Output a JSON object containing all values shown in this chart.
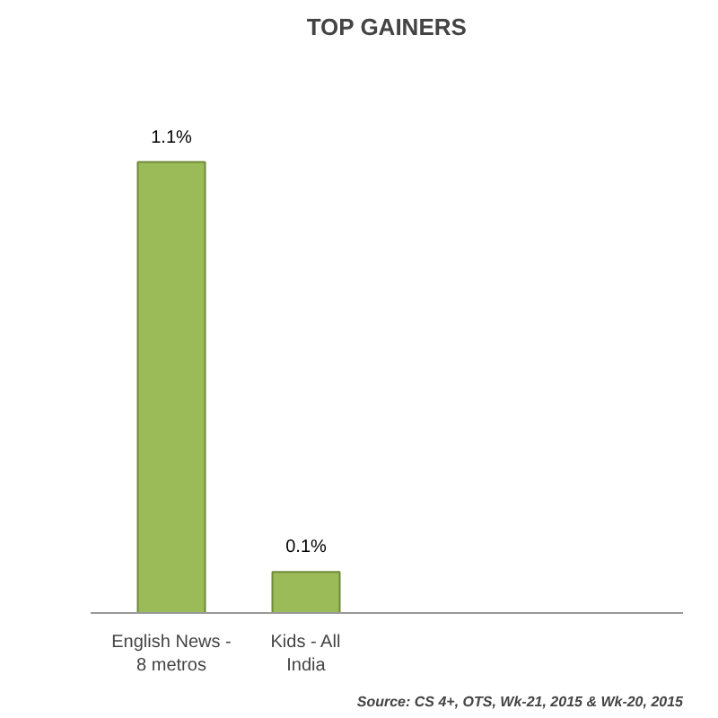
{
  "chart_data": {
    "type": "bar",
    "title": "TOP GAINERS",
    "categories": [
      "English News - 8 metros",
      "Kids - All India"
    ],
    "values": [
      1.1,
      0.1
    ],
    "color": "#9bbb59",
    "value_labels": [
      "1.1%",
      "0.1%"
    ],
    "annotations": [
      "Source: CS 4+, OTS, Wk-21, 2015 & Wk-20, 2015"
    ],
    "grid": false
  }
}
